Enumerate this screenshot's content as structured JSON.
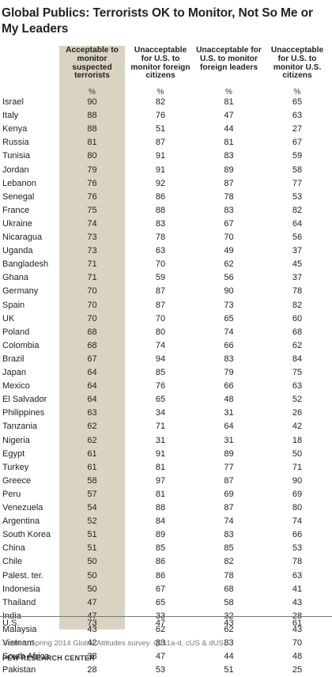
{
  "title": "Global Publics: Terrorists OK to Monitor, Not So Me or My Leaders",
  "headers": [
    "Acceptable to monitor suspected terrorists",
    "Unacceptable for U.S. to monitor foreign citizens",
    "Unacceptable for U.S. to monitor foreign leaders",
    "Unacceptable for U.S. to monitor U.S. citizens"
  ],
  "unit_row": [
    "%",
    "%",
    "%",
    "%"
  ],
  "highlight_color": "#d9d3c1",
  "chart_data": {
    "type": "table",
    "title": "Global Publics: Terrorists OK to Monitor, Not So Me or My Leaders",
    "columns": [
      "Acceptable to monitor suspected terrorists",
      "Unacceptable for U.S. to monitor foreign citizens",
      "Unacceptable for U.S. to monitor foreign leaders",
      "Unacceptable for U.S. to monitor U.S. citizens"
    ],
    "rows": [
      {
        "country": "Israel",
        "values": [
          90,
          82,
          81,
          65
        ]
      },
      {
        "country": "Italy",
        "values": [
          88,
          76,
          47,
          63
        ]
      },
      {
        "country": "Kenya",
        "values": [
          88,
          51,
          44,
          27
        ]
      },
      {
        "country": "Russia",
        "values": [
          81,
          87,
          81,
          67
        ]
      },
      {
        "country": "Tunisia",
        "values": [
          80,
          91,
          83,
          59
        ]
      },
      {
        "country": "Jordan",
        "values": [
          79,
          91,
          89,
          58
        ]
      },
      {
        "country": "Lebanon",
        "values": [
          76,
          92,
          87,
          77
        ]
      },
      {
        "country": "Senegal",
        "values": [
          76,
          86,
          78,
          53
        ]
      },
      {
        "country": "France",
        "values": [
          75,
          88,
          83,
          82
        ]
      },
      {
        "country": "Ukraine",
        "values": [
          74,
          83,
          67,
          64
        ]
      },
      {
        "country": "Nicaragua",
        "values": [
          73,
          78,
          70,
          56
        ]
      },
      {
        "country": "Uganda",
        "values": [
          73,
          63,
          49,
          37
        ]
      },
      {
        "country": "Bangladesh",
        "values": [
          71,
          70,
          62,
          45
        ]
      },
      {
        "country": "Ghana",
        "values": [
          71,
          59,
          56,
          37
        ]
      },
      {
        "country": "Germany",
        "values": [
          70,
          87,
          90,
          78
        ]
      },
      {
        "country": "Spain",
        "values": [
          70,
          87,
          73,
          82
        ]
      },
      {
        "country": "UK",
        "values": [
          70,
          70,
          65,
          60
        ]
      },
      {
        "country": "Poland",
        "values": [
          68,
          80,
          74,
          68
        ]
      },
      {
        "country": "Colombia",
        "values": [
          68,
          74,
          66,
          62
        ]
      },
      {
        "country": "Brazil",
        "values": [
          67,
          94,
          83,
          84
        ]
      },
      {
        "country": "Japan",
        "values": [
          64,
          85,
          79,
          75
        ]
      },
      {
        "country": "Mexico",
        "values": [
          64,
          76,
          66,
          63
        ]
      },
      {
        "country": "El Salvador",
        "values": [
          64,
          65,
          48,
          52
        ]
      },
      {
        "country": "Philippines",
        "values": [
          63,
          34,
          31,
          26
        ]
      },
      {
        "country": "Tanzania",
        "values": [
          62,
          71,
          64,
          42
        ]
      },
      {
        "country": "Nigeria",
        "values": [
          62,
          31,
          31,
          18
        ]
      },
      {
        "country": "Egypt",
        "values": [
          61,
          91,
          89,
          50
        ]
      },
      {
        "country": "Turkey",
        "values": [
          61,
          81,
          77,
          71
        ]
      },
      {
        "country": "Greece",
        "values": [
          58,
          97,
          87,
          90
        ]
      },
      {
        "country": "Peru",
        "values": [
          57,
          81,
          69,
          69
        ]
      },
      {
        "country": "Venezuela",
        "values": [
          54,
          88,
          87,
          80
        ]
      },
      {
        "country": "Argentina",
        "values": [
          52,
          84,
          74,
          74
        ]
      },
      {
        "country": "South Korea",
        "values": [
          51,
          89,
          83,
          66
        ]
      },
      {
        "country": "China",
        "values": [
          51,
          85,
          85,
          53
        ]
      },
      {
        "country": "Chile",
        "values": [
          50,
          86,
          82,
          78
        ]
      },
      {
        "country": "Palest. ter.",
        "values": [
          50,
          86,
          78,
          63
        ]
      },
      {
        "country": "Indonesia",
        "values": [
          50,
          67,
          68,
          41
        ]
      },
      {
        "country": "Thailand",
        "values": [
          47,
          65,
          58,
          43
        ]
      },
      {
        "country": "India",
        "values": [
          47,
          33,
          32,
          28
        ]
      },
      {
        "country": "Malaysia",
        "values": [
          43,
          62,
          62,
          43
        ]
      },
      {
        "country": "Vietnam",
        "values": [
          42,
          83,
          83,
          70
        ]
      },
      {
        "country": "South Africa",
        "values": [
          38,
          47,
          44,
          48
        ]
      },
      {
        "country": "Pakistan",
        "values": [
          28,
          53,
          51,
          25
        ]
      },
      {
        "country": "U.S.",
        "values": [
          73,
          47,
          43,
          61
        ]
      }
    ]
  },
  "footer": {
    "source": "Source: Spring 2014 Global Attitudes survey. Q111a-d, cUS & dUS.",
    "org": "PEW RESEARCH CENTER"
  }
}
